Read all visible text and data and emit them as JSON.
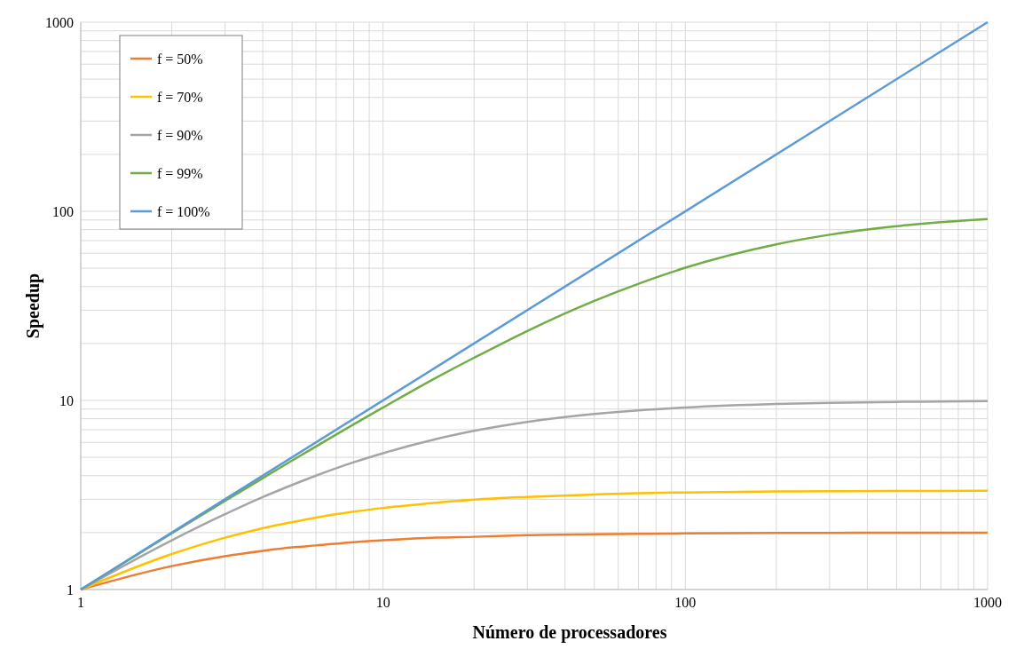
{
  "chart_data": {
    "type": "line",
    "xlabel": "Número de processadores",
    "ylabel": "Speedup",
    "log": "xy",
    "grid": true,
    "legend": "top left",
    "marker": "none",
    "line_style": "solid",
    "x": [
      1,
      2,
      3,
      4,
      5,
      6,
      8,
      10,
      15,
      20,
      30,
      50,
      70,
      100,
      200,
      300,
      500,
      700,
      1000
    ],
    "xlim": [
      1,
      1000
    ],
    "ylim": [
      1,
      1000
    ],
    "xticks": [
      1,
      {
        "value": 2,
        "label": null
      },
      {
        "value": 3,
        "label": null
      },
      {
        "value": 4,
        "label": null
      },
      {
        "value": 5,
        "label": null
      },
      {
        "value": 6,
        "label": null
      },
      {
        "value": 7,
        "label": null
      },
      {
        "value": 8,
        "label": null
      },
      {
        "value": 9,
        "label": null
      },
      10,
      {
        "value": 20,
        "label": null
      },
      {
        "value": 30,
        "label": null
      },
      {
        "value": 40,
        "label": null
      },
      {
        "value": 50,
        "label": null
      },
      {
        "value": 60,
        "label": null
      },
      {
        "value": 70,
        "label": null
      },
      {
        "value": 80,
        "label": null
      },
      {
        "value": 90,
        "label": null
      },
      100,
      {
        "value": 200,
        "label": null
      },
      {
        "value": 300,
        "label": null
      },
      {
        "value": 400,
        "label": null
      },
      {
        "value": 500,
        "label": null
      },
      {
        "value": 600,
        "label": null
      },
      {
        "value": 700,
        "label": null
      },
      {
        "value": 800,
        "label": null
      },
      {
        "value": 900,
        "label": null
      },
      1000
    ],
    "yticks": [
      1,
      {
        "value": 2,
        "label": null
      },
      {
        "value": 3,
        "label": null
      },
      {
        "value": 4,
        "label": null
      },
      {
        "value": 5,
        "label": null
      },
      {
        "value": 6,
        "label": null
      },
      {
        "value": 7,
        "label": null
      },
      {
        "value": 8,
        "label": null
      },
      {
        "value": 9,
        "label": null
      },
      10,
      {
        "value": 20,
        "label": null
      },
      {
        "value": 30,
        "label": null
      },
      {
        "value": 40,
        "label": null
      },
      {
        "value": 50,
        "label": null
      },
      {
        "value": 60,
        "label": null
      },
      {
        "value": 70,
        "label": null
      },
      {
        "value": 80,
        "label": null
      },
      {
        "value": 90,
        "label": null
      },
      100,
      {
        "value": 200,
        "label": null
      },
      {
        "value": 300,
        "label": null
      },
      {
        "value": 400,
        "label": null
      },
      {
        "value": 500,
        "label": null
      },
      {
        "value": 600,
        "label": null
      },
      {
        "value": 700,
        "label": null
      },
      {
        "value": 800,
        "label": null
      },
      {
        "value": 900,
        "label": null
      },
      1000
    ],
    "series": [
      {
        "name": "f = 50%",
        "color": "#ed7d31",
        "values": [
          1,
          1.33,
          1.5,
          1.6,
          1.67,
          1.71,
          1.78,
          1.82,
          1.88,
          1.9,
          1.94,
          1.96,
          1.97,
          1.98,
          1.99,
          1.99,
          2.0,
          2.0,
          2.0
        ]
      },
      {
        "name": "f = 70%",
        "color": "#ffc000",
        "values": [
          1,
          1.54,
          1.88,
          2.11,
          2.27,
          2.4,
          2.58,
          2.7,
          2.88,
          2.99,
          3.09,
          3.18,
          3.23,
          3.26,
          3.3,
          3.31,
          3.32,
          3.32,
          3.33
        ]
      },
      {
        "name": "f = 90%",
        "color": "#a5a5a5",
        "values": [
          1,
          1.82,
          2.5,
          3.08,
          3.57,
          4.0,
          4.71,
          5.26,
          6.25,
          6.9,
          7.69,
          8.47,
          8.86,
          9.17,
          9.57,
          9.71,
          9.82,
          9.87,
          9.91
        ]
      },
      {
        "name": "f = 99%",
        "color": "#70ad47",
        "values": [
          1,
          1.98,
          2.94,
          3.88,
          4.81,
          5.71,
          7.48,
          9.17,
          13.2,
          16.8,
          23.3,
          33.6,
          41.4,
          50.3,
          66.9,
          75.2,
          83.5,
          87.6,
          91.0
        ]
      },
      {
        "name": "f = 100%",
        "color": "#5b9bd5",
        "x": [
          1,
          1000
        ],
        "values": [
          1,
          1000
        ]
      }
    ]
  }
}
